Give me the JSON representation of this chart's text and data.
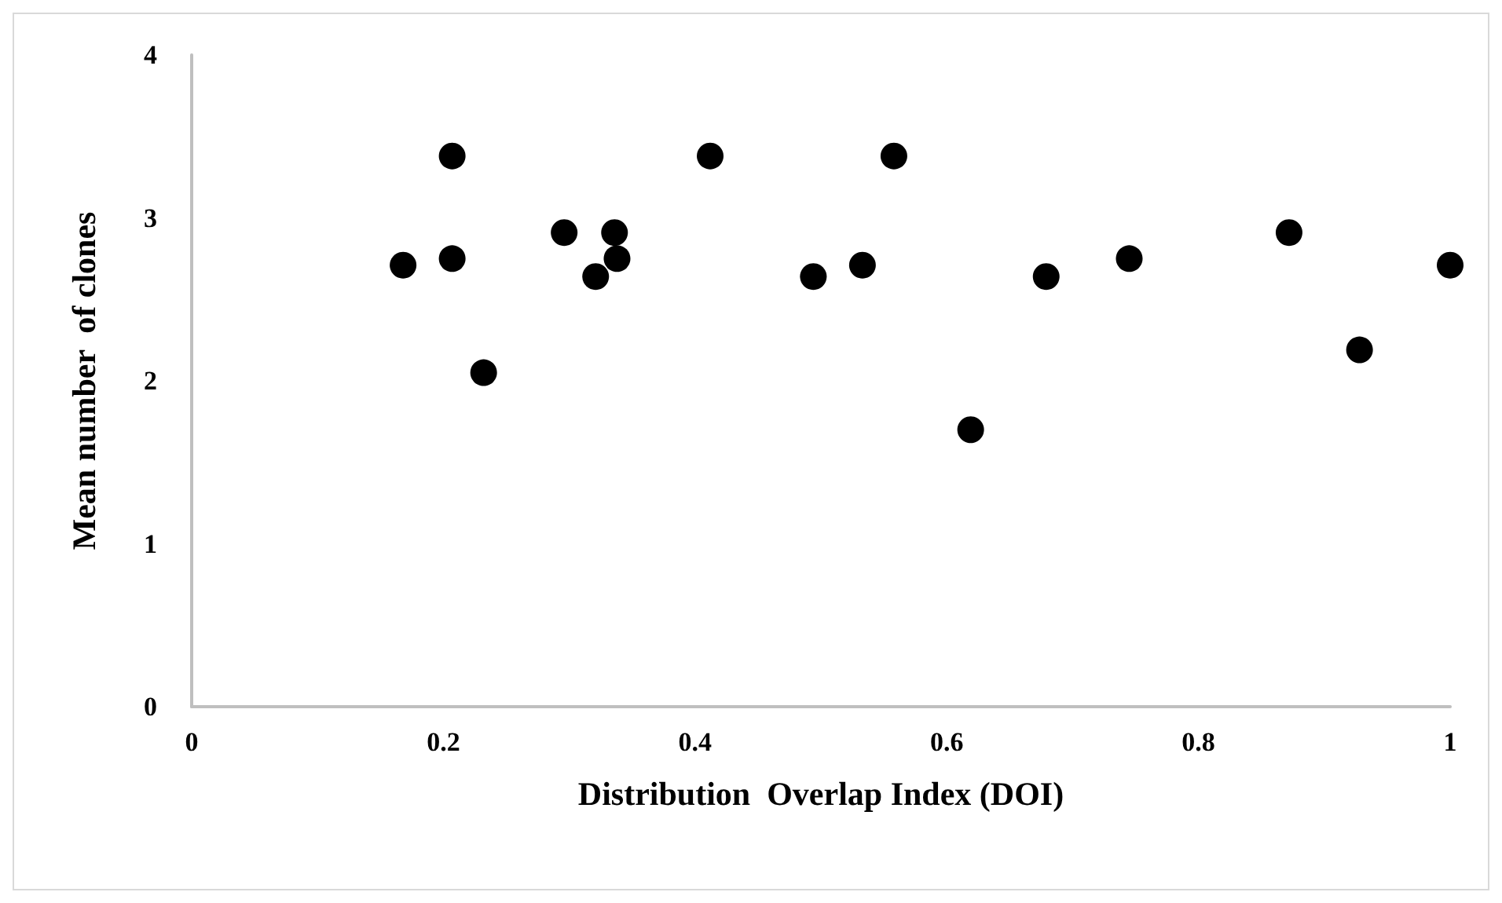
{
  "chart_data": {
    "type": "scatter",
    "xlabel": "Distribution  Overlap Index (DOI)",
    "ylabel": "Mean number  of clones",
    "x": [
      0.168,
      0.207,
      0.207,
      0.232,
      0.296,
      0.321,
      0.336,
      0.338,
      0.412,
      0.494,
      0.533,
      0.558,
      0.619,
      0.679,
      0.745,
      0.872,
      0.928,
      1.0
    ],
    "values": [
      2.71,
      3.38,
      2.75,
      2.05,
      2.91,
      2.64,
      2.91,
      2.75,
      3.38,
      2.64,
      2.71,
      3.38,
      1.7,
      2.64,
      2.75,
      2.91,
      2.19,
      2.71
    ],
    "color": "#000000",
    "marker": "circle",
    "xlim": [
      0,
      1
    ],
    "xticks": [
      0,
      0.2,
      0.4,
      0.6,
      0.8,
      1
    ],
    "ylim": [
      0,
      4
    ],
    "yticks": [
      0,
      1,
      2,
      3,
      4
    ]
  }
}
